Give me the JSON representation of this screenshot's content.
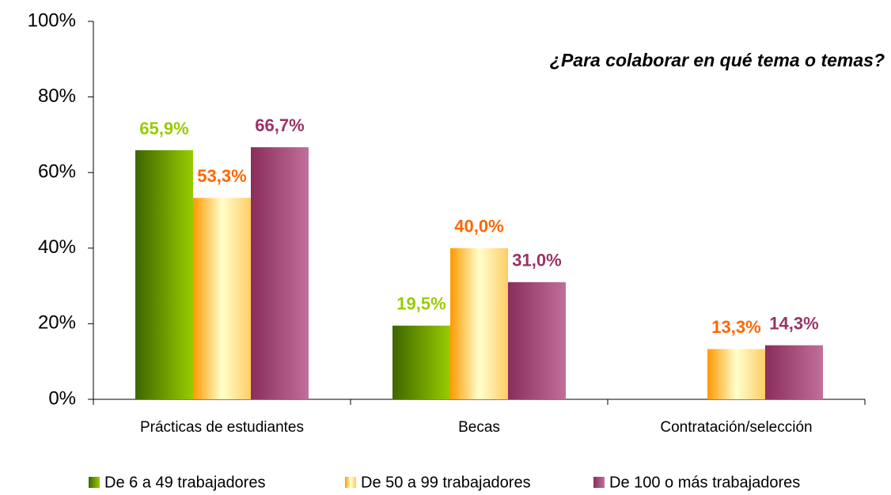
{
  "chart_data": {
    "type": "bar",
    "title": "¿Para colaborar en qué tema o temas?",
    "categories": [
      "Prácticas de estudiantes",
      "Becas",
      "Contratación/selección"
    ],
    "series": [
      {
        "name": "De 6 a 49 trabajadores",
        "color": "#99cc00",
        "values": [
          65.9,
          19.5,
          null
        ],
        "value_labels": [
          "65,9%",
          "19,5%",
          null
        ]
      },
      {
        "name": "De 50 a 99 trabajadores",
        "color": "#ff6600",
        "values": [
          53.3,
          40.0,
          13.3
        ],
        "value_labels": [
          "53,3%",
          "40,0%",
          "13,3%"
        ]
      },
      {
        "name": "De 100 o más trabajadores",
        "color": "#993366",
        "values": [
          66.7,
          31.0,
          14.3
        ],
        "value_labels": [
          "66,7%",
          "31,0%",
          "14,3%"
        ]
      }
    ],
    "ylim": [
      0,
      100
    ],
    "yticks": [
      {
        "value": 0,
        "label": "0%"
      },
      {
        "value": 20,
        "label": "20%"
      },
      {
        "value": 40,
        "label": "40%"
      },
      {
        "value": 60,
        "label": "60%"
      },
      {
        "value": 80,
        "label": "80%"
      },
      {
        "value": 100,
        "label": "100%"
      }
    ],
    "grid": false,
    "legend": "bottom"
  }
}
